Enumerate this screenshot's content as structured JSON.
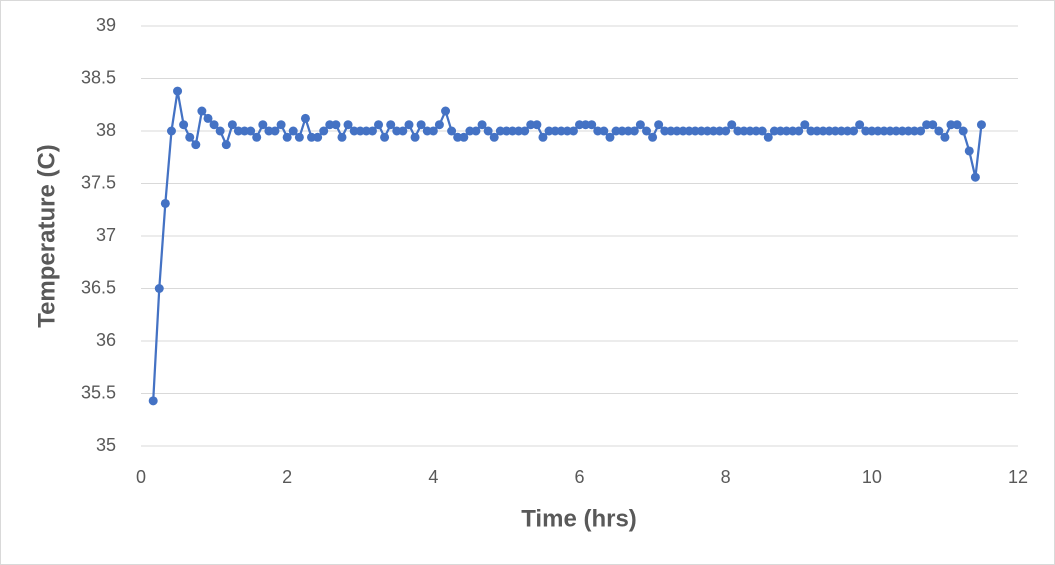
{
  "chart_data": {
    "type": "line",
    "x_label": "Time (hrs)",
    "y_label": "Temperature (C)",
    "xlim": [
      0,
      12
    ],
    "xticks": [
      0,
      2,
      4,
      6,
      8,
      10,
      12
    ],
    "ylim": [
      35,
      39
    ],
    "yticks": [
      35,
      35.5,
      36,
      36.5,
      37,
      37.5,
      38,
      38.5,
      39
    ],
    "grid": true,
    "markers": true,
    "x": [
      0.167,
      0.25,
      0.333,
      0.417,
      0.5,
      0.583,
      0.667,
      0.75,
      0.833,
      0.917,
      1,
      1.083,
      1.167,
      1.25,
      1.333,
      1.417,
      1.5,
      1.583,
      1.667,
      1.75,
      1.833,
      1.917,
      2,
      2.083,
      2.167,
      2.25,
      2.333,
      2.417,
      2.5,
      2.583,
      2.667,
      2.75,
      2.833,
      2.917,
      3,
      3.083,
      3.167,
      3.25,
      3.333,
      3.417,
      3.5,
      3.583,
      3.667,
      3.75,
      3.833,
      3.917,
      4,
      4.083,
      4.167,
      4.25,
      4.333,
      4.417,
      4.5,
      4.583,
      4.667,
      4.75,
      4.833,
      4.917,
      5,
      5.083,
      5.167,
      5.25,
      5.333,
      5.417,
      5.5,
      5.583,
      5.667,
      5.75,
      5.833,
      5.917,
      6,
      6.083,
      6.167,
      6.25,
      6.333,
      6.417,
      6.5,
      6.583,
      6.667,
      6.75,
      6.833,
      6.917,
      7,
      7.083,
      7.167,
      7.25,
      7.333,
      7.417,
      7.5,
      7.583,
      7.667,
      7.75,
      7.833,
      7.917,
      8,
      8.083,
      8.167,
      8.25,
      8.333,
      8.417,
      8.5,
      8.583,
      8.667,
      8.75,
      8.833,
      8.917,
      9,
      9.083,
      9.167,
      9.25,
      9.333,
      9.417,
      9.5,
      9.583,
      9.667,
      9.75,
      9.833,
      9.917,
      10,
      10.083,
      10.167,
      10.25,
      10.333,
      10.417,
      10.5,
      10.583,
      10.667,
      10.75,
      10.833,
      10.917,
      11,
      11.083,
      11.167,
      11.25,
      11.333,
      11.417,
      11.5
    ],
    "series": [
      {
        "color": "#4472c4",
        "values": [
          35.43,
          36.5,
          37.31,
          38,
          38.38,
          38.06,
          37.94,
          37.87,
          38.19,
          38.12,
          38.06,
          38,
          37.87,
          38.06,
          38,
          38,
          38,
          37.94,
          38.06,
          38,
          38,
          38.06,
          37.94,
          38,
          37.94,
          38.12,
          37.94,
          37.94,
          38,
          38.06,
          38.06,
          37.94,
          38.06,
          38,
          38,
          38,
          38,
          38.06,
          37.94,
          38.06,
          38,
          38,
          38.06,
          37.94,
          38.06,
          38,
          38,
          38.06,
          38.19,
          38,
          37.94,
          37.94,
          38,
          38,
          38.06,
          38,
          37.94,
          38,
          38,
          38,
          38,
          38,
          38.06,
          38.06,
          37.94,
          38,
          38,
          38,
          38,
          38,
          38.06,
          38.06,
          38.06,
          38,
          38,
          37.94,
          38,
          38,
          38,
          38,
          38.06,
          38,
          37.94,
          38.06,
          38,
          38,
          38,
          38,
          38,
          38,
          38,
          38,
          38,
          38,
          38,
          38.06,
          38,
          38,
          38,
          38,
          38,
          37.94,
          38,
          38,
          38,
          38,
          38,
          38.06,
          38,
          38,
          38,
          38,
          38,
          38,
          38,
          38,
          38.06,
          38,
          38,
          38,
          38,
          38,
          38,
          38,
          38,
          38,
          38,
          38.06,
          38.06,
          38,
          37.94,
          38.06,
          38.06,
          38,
          37.81,
          37.56,
          38.06
        ]
      }
    ]
  }
}
